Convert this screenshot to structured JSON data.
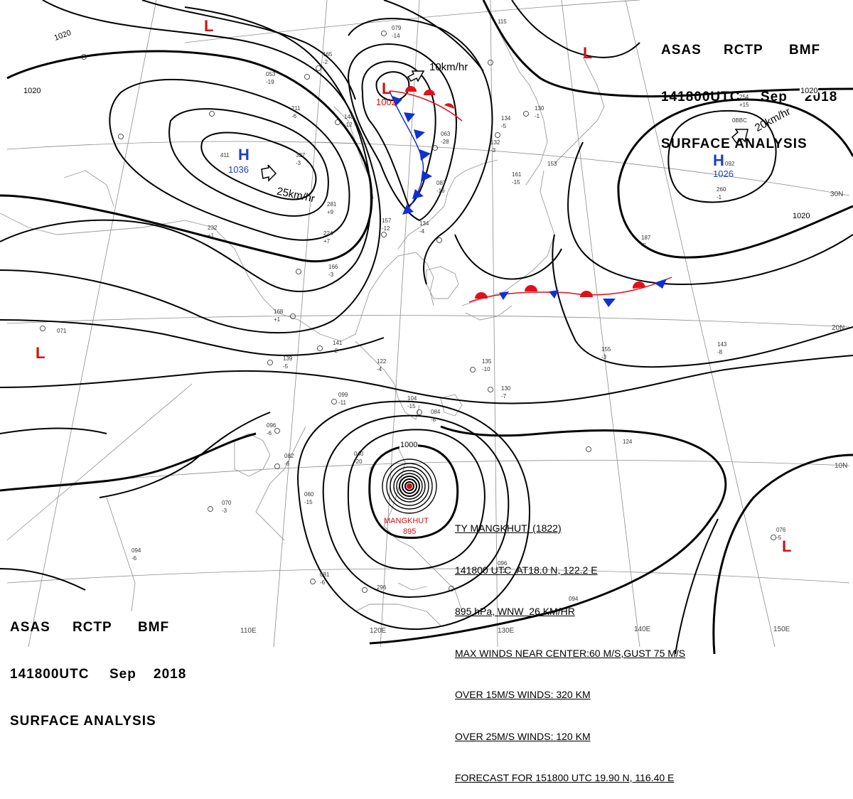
{
  "header": {
    "line1": [
      "ASAS",
      "RCTP",
      "BMF"
    ],
    "line2": [
      "141800UTC",
      "Sep",
      "2018"
    ],
    "line3": "SURFACE ANALYSIS"
  },
  "typhoon": {
    "name_label": "MANGKHUT",
    "pressure_label": "895",
    "info_lines": [
      "TY MANGKHUT  (1822)",
      "141800 UTC  AT18.0 N, 122.2 E",
      "895 hPa, WNW  26 KM/HR",
      "MAX WINDS NEAR CENTER:60 M/S,GUST 75 M/S",
      "OVER 15M/S WINDS: 320 KM",
      "OVER 25M/S WINDS: 120 KM",
      "FORECAST FOR 151800 UTC 19.90 N, 116.40 E"
    ]
  },
  "systems": [
    {
      "type": "H",
      "value": "1036",
      "color": "#1f3fbf"
    },
    {
      "type": "H",
      "value": "1026",
      "color": "#1f3fbf"
    },
    {
      "type": "L",
      "value": "1002",
      "color": "#d01010"
    },
    {
      "type": "L",
      "value": "",
      "color": "#d01010"
    },
    {
      "type": "L",
      "value": "",
      "color": "#d01010"
    },
    {
      "type": "L",
      "value": "",
      "color": "#d01010"
    },
    {
      "type": "L",
      "value": "",
      "color": "#d01010"
    }
  ],
  "motion_labels": [
    "25km/hr",
    "10km/hr",
    "20km/hr"
  ],
  "isobar_labels": [
    "1020",
    "1020",
    "1020",
    "1020",
    "1000"
  ],
  "lon_labels": [
    "110E",
    "120E",
    "130E",
    "140E",
    "150E"
  ],
  "lat_labels": [
    "10N",
    "20N",
    "30N"
  ],
  "colors": {
    "low": "#d01010",
    "high": "#1f3fbf",
    "warm_front": "#e0101a",
    "cold_front": "#1030d0",
    "coast": "#9a9a9a"
  },
  "stations": [
    "079",
    "-14",
    "115",
    "254",
    "+15",
    "0BBC",
    "165",
    "-2",
    "053",
    "-19",
    "211",
    "-6",
    "148",
    "-12",
    "063",
    "-28",
    "134",
    "-5",
    "132",
    "-3",
    "161",
    "-15",
    "153",
    "087",
    "-16",
    "157",
    "-12",
    "134",
    "-4",
    "130",
    "-1",
    "232",
    "+1",
    "281",
    "+9",
    "224",
    "+7",
    "166",
    "-3",
    "168",
    "+1",
    "139",
    "-5",
    "141",
    "-2",
    "122",
    "-4",
    "135",
    "-10",
    "130",
    "-7",
    "099",
    "-11",
    "104",
    "-15",
    "084",
    "-8",
    "096",
    "-6",
    "082",
    "-6",
    "040",
    "-20",
    "070",
    "-3",
    "060",
    "-15",
    "094",
    "-6",
    "081",
    "-6",
    "096",
    "-12",
    "094",
    "124",
    "155",
    "-3",
    "143",
    "-8",
    "187",
    "-5",
    "260",
    "-1",
    "092",
    "076",
    "-5",
    "071",
    "411",
    "327",
    "-3",
    "296"
  ]
}
